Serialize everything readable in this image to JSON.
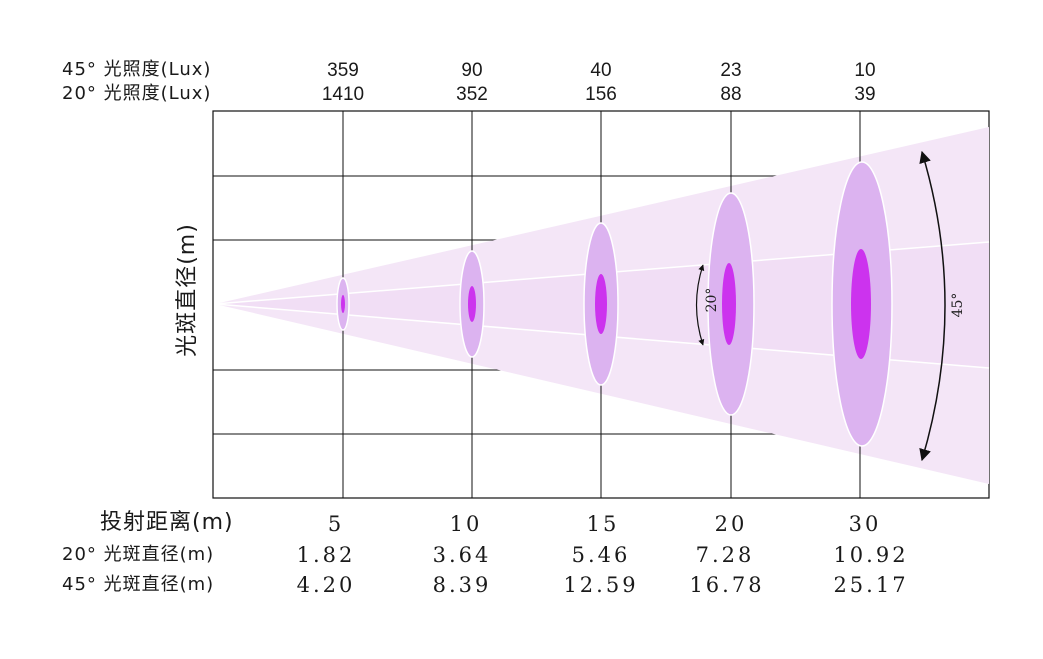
{
  "labels": {
    "lux_45": "45° 光照度(Lux)",
    "lux_20": "20° 光照度(Lux)",
    "y_axis": "光斑直径(m)",
    "distance": "投射距离(m)",
    "dia_20": "20° 光斑直径(m)",
    "dia_45": "45° 光斑直径(m)",
    "angle_20": "20°",
    "angle_45": "45°"
  },
  "chart_data": {
    "type": "beam-diagram",
    "distances": [
      "5",
      "10",
      "15",
      "20",
      "30"
    ],
    "lux_45": [
      "359",
      "90",
      "40",
      "23",
      "10"
    ],
    "lux_20": [
      "1410",
      "352",
      "156",
      "88",
      "39"
    ],
    "diameter_20": [
      "1.82",
      "3.64",
      "5.46",
      "7.28",
      "10.92"
    ],
    "diameter_45": [
      "4.20",
      "8.39",
      "12.59",
      "16.78",
      "25.17"
    ],
    "beam_angles_deg": [
      20,
      45
    ]
  },
  "colors": {
    "outer_beam": "#f4e6f7",
    "mid_band": "#f7ecf9",
    "inner_beam": "#edd4f3",
    "ellipse_45": "#dcb3f0",
    "ellipse_20": "#cc33ee",
    "grid": "#111111"
  }
}
